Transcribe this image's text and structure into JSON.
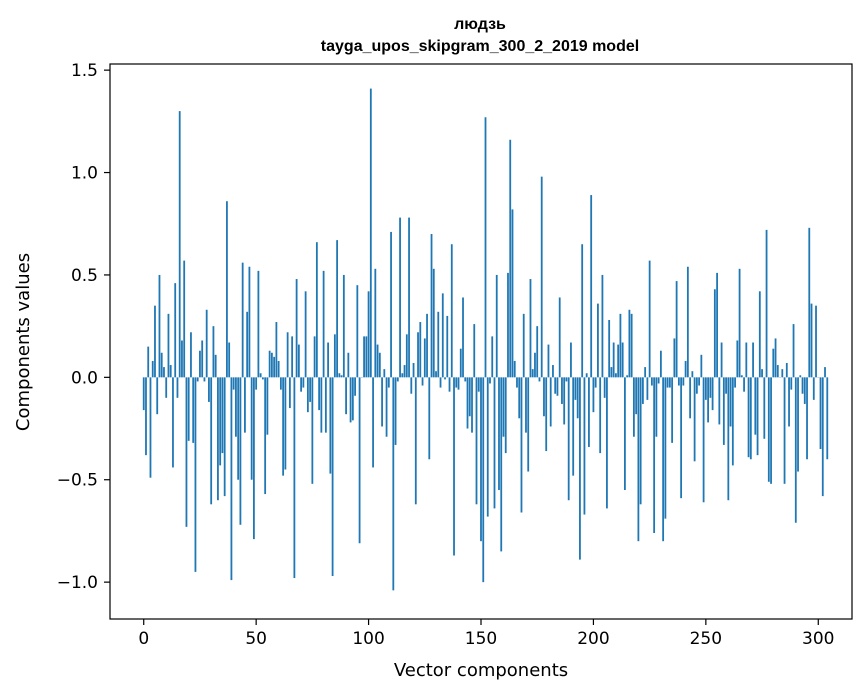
{
  "chart_data": {
    "type": "bar",
    "title_line1": "людзь",
    "title_line2": "tayga_upos_skipgram_300_2_2019 model",
    "xlabel": "Vector components",
    "ylabel": "Components values",
    "xlim": [
      -15,
      315
    ],
    "ylim": [
      -1.18,
      1.53
    ],
    "x_ticks": [
      0,
      50,
      100,
      150,
      200,
      250,
      300
    ],
    "x_tick_labels": [
      "0",
      "50",
      "100",
      "150",
      "200",
      "250",
      "300"
    ],
    "y_ticks": [
      -1.0,
      -0.5,
      0.0,
      0.5,
      1.0,
      1.5
    ],
    "y_tick_labels": [
      "−1.0",
      "−0.5",
      "0.0",
      "0.5",
      "1.0",
      "1.5"
    ],
    "bar_color": "#1f77b4",
    "grid": false,
    "values": [
      -0.16,
      -0.38,
      0.15,
      -0.49,
      0.08,
      0.35,
      -0.18,
      0.5,
      0.12,
      0.05,
      -0.1,
      0.31,
      0.06,
      -0.44,
      0.46,
      -0.1,
      1.3,
      0.18,
      0.57,
      -0.73,
      -0.31,
      0.22,
      -0.32,
      -0.95,
      -0.02,
      0.13,
      0.18,
      -0.02,
      0.33,
      -0.12,
      -0.62,
      0.25,
      0.11,
      -0.6,
      -0.43,
      -0.37,
      -0.58,
      0.86,
      0.17,
      -0.99,
      -0.06,
      -0.29,
      -0.5,
      -0.72,
      0.56,
      -0.27,
      0.32,
      0.54,
      -0.5,
      -0.79,
      -0.06,
      0.52,
      0.02,
      -0.01,
      -0.57,
      -0.28,
      0.13,
      0.12,
      0.1,
      0.27,
      0.08,
      -0.06,
      -0.48,
      -0.45,
      0.22,
      -0.15,
      0.2,
      -0.98,
      0.48,
      0.16,
      -0.07,
      -0.05,
      0.42,
      -0.17,
      -0.12,
      -0.52,
      0.2,
      0.66,
      -0.16,
      -0.27,
      0.52,
      -0.27,
      0.17,
      -0.47,
      -0.97,
      0.21,
      0.67,
      0.02,
      0.01,
      0.5,
      -0.18,
      0.12,
      -0.22,
      -0.21,
      -0.09,
      0.45,
      -0.81,
      0.0,
      0.2,
      0.2,
      0.42,
      1.41,
      -0.44,
      0.53,
      0.16,
      0.12,
      -0.24,
      0.04,
      -0.29,
      -0.05,
      0.71,
      -1.04,
      -0.33,
      -0.02,
      0.78,
      0.02,
      0.06,
      0.21,
      0.78,
      -0.08,
      0.07,
      -0.62,
      0.22,
      0.27,
      -0.04,
      0.19,
      0.31,
      -0.4,
      0.7,
      0.53,
      0.03,
      0.32,
      -0.05,
      0.41,
      -0.01,
      0.3,
      -0.07,
      0.65,
      -0.87,
      -0.05,
      -0.06,
      0.14,
      0.39,
      -0.02,
      -0.25,
      -0.19,
      -0.27,
      0.26,
      -0.62,
      -0.07,
      -0.8,
      -1.0,
      1.27,
      -0.68,
      -0.03,
      0.2,
      -0.64,
      0.5,
      -0.55,
      -0.85,
      -0.29,
      -0.37,
      0.51,
      1.16,
      0.82,
      0.08,
      -0.05,
      -0.2,
      -0.66,
      0.31,
      -0.27,
      -0.46,
      0.48,
      0.04,
      0.12,
      0.25,
      -0.02,
      0.98,
      -0.19,
      -0.36,
      0.16,
      -0.24,
      0.06,
      -0.08,
      -0.09,
      0.39,
      -0.13,
      -0.23,
      -0.02,
      -0.6,
      0.17,
      -0.48,
      -0.11,
      -0.2,
      -0.89,
      0.65,
      -0.67,
      0.02,
      -0.34,
      0.89,
      -0.17,
      -0.05,
      0.36,
      -0.37,
      0.5,
      -0.1,
      -0.64,
      0.28,
      0.05,
      0.17,
      0.02,
      0.16,
      0.31,
      0.17,
      -0.55,
      0.01,
      0.33,
      0.31,
      -0.29,
      -0.18,
      -0.8,
      -0.62,
      -0.13,
      0.05,
      -0.11,
      0.57,
      -0.04,
      -0.76,
      -0.29,
      -0.03,
      0.13,
      -0.8,
      -0.69,
      -0.05,
      -0.05,
      -0.32,
      0.19,
      0.47,
      -0.04,
      -0.59,
      -0.04,
      0.08,
      0.54,
      -0.2,
      0.03,
      -0.41,
      -0.08,
      -0.04,
      0.11,
      -0.61,
      -0.11,
      -0.22,
      -0.1,
      -0.16,
      0.43,
      0.51,
      -0.23,
      0.17,
      -0.33,
      -0.08,
      -0.6,
      -0.24,
      -0.43,
      -0.05,
      0.18,
      0.53,
      0.01,
      -0.07,
      0.17,
      -0.39,
      -0.4,
      0.17,
      -0.28,
      -0.38,
      0.42,
      0.04,
      -0.3,
      0.72,
      -0.51,
      -0.52,
      0.14,
      0.19,
      0.06,
      0.0,
      0.04,
      -0.52,
      0.07,
      -0.24,
      -0.06,
      0.26,
      -0.71,
      -0.46,
      0.01,
      -0.08,
      -0.13,
      -0.4,
      0.73,
      0.36,
      -0.11,
      0.35,
      0.0,
      -0.35,
      -0.58,
      0.05,
      -0.4
    ]
  }
}
